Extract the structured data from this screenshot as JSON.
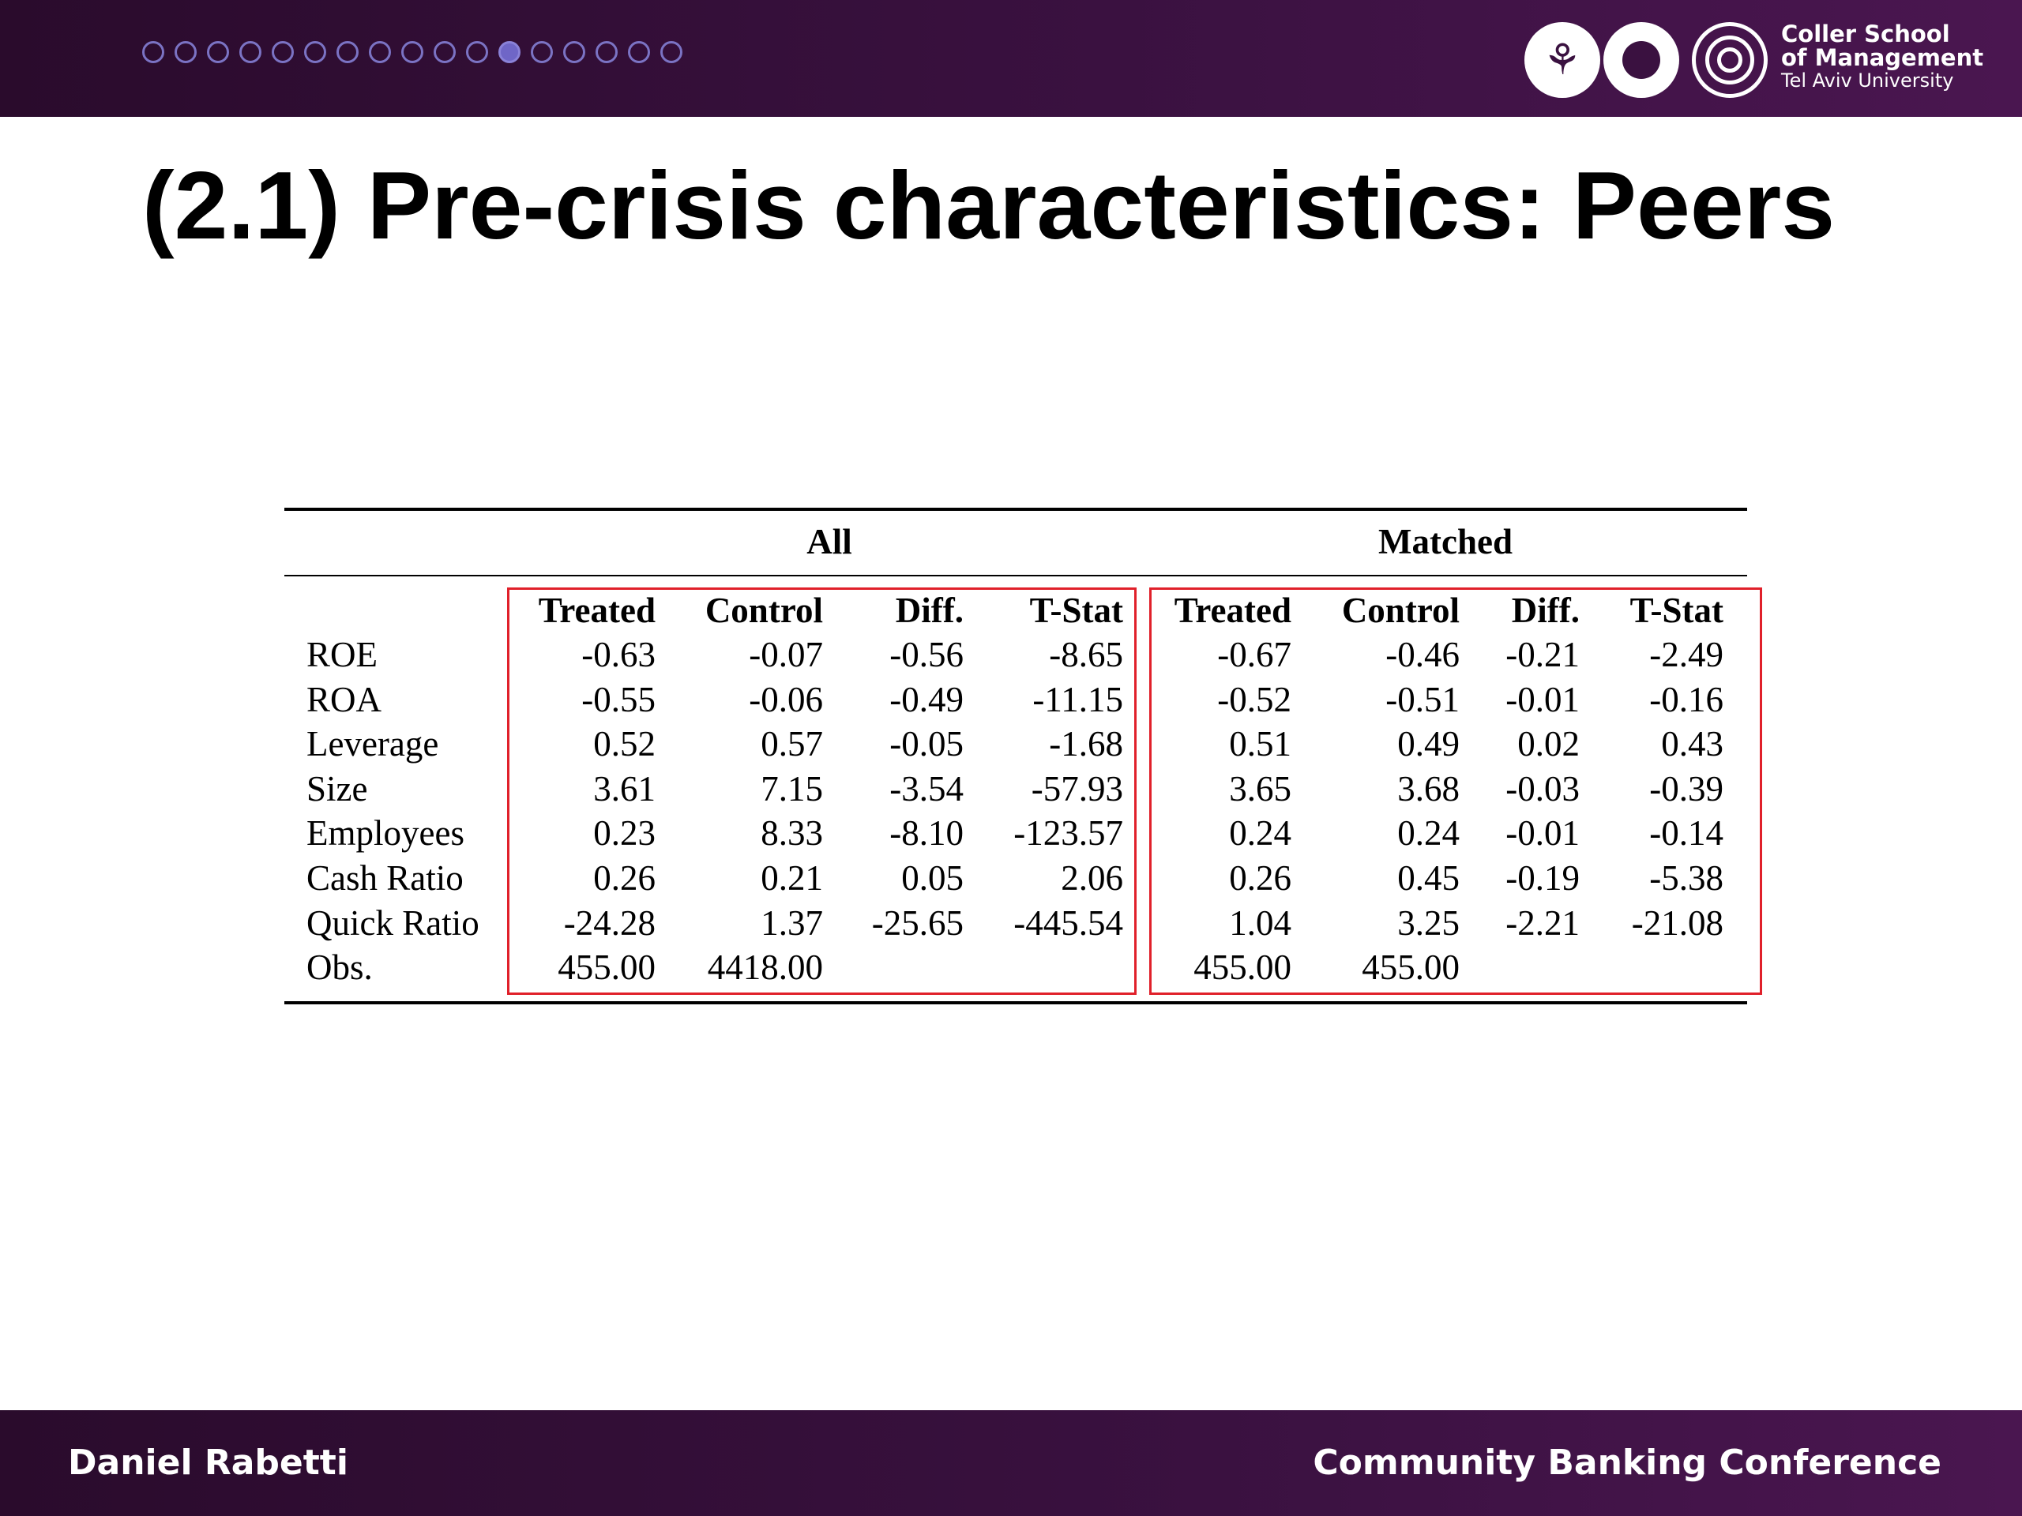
{
  "nav": {
    "total_dots": 17,
    "active_index": 11
  },
  "logo": {
    "line1": "Coller School",
    "line2": "of Management",
    "line3": "Tel Aviv University",
    "emblem_icon": "tau-emblem-icon"
  },
  "title": "(2.1) Pre-crisis characteristics: Peers",
  "table": {
    "groups": [
      "All",
      "Matched"
    ],
    "columns": [
      "Treated",
      "Control",
      "Diff.",
      "T-Stat",
      "Treated",
      "Control",
      "Diff.",
      "T-Stat"
    ],
    "rows": [
      {
        "label": "ROE",
        "values": [
          "-0.63",
          "-0.07",
          "-0.56",
          "-8.65",
          "-0.67",
          "-0.46",
          "-0.21",
          "-2.49"
        ]
      },
      {
        "label": "ROA",
        "values": [
          "-0.55",
          "-0.06",
          "-0.49",
          "-11.15",
          "-0.52",
          "-0.51",
          "-0.01",
          "-0.16"
        ]
      },
      {
        "label": "Leverage",
        "values": [
          "0.52",
          "0.57",
          "-0.05",
          "-1.68",
          "0.51",
          "0.49",
          "0.02",
          "0.43"
        ]
      },
      {
        "label": "Size",
        "values": [
          "3.61",
          "7.15",
          "-3.54",
          "-57.93",
          "3.65",
          "3.68",
          "-0.03",
          "-0.39"
        ]
      },
      {
        "label": "Employees",
        "values": [
          "0.23",
          "8.33",
          "-8.10",
          "-123.57",
          "0.24",
          "0.24",
          "-0.01",
          "-0.14"
        ]
      },
      {
        "label": "Cash Ratio",
        "values": [
          "0.26",
          "0.21",
          "0.05",
          "2.06",
          "0.26",
          "0.45",
          "-0.19",
          "-5.38"
        ]
      },
      {
        "label": "Quick Ratio",
        "values": [
          "-24.28",
          "1.37",
          "-25.65",
          "-445.54",
          "1.04",
          "3.25",
          "-2.21",
          "-21.08"
        ]
      },
      {
        "label": "Obs.",
        "values": [
          "455.00",
          "4418.00",
          "",
          "",
          "455.00",
          "455.00",
          "",
          ""
        ]
      }
    ],
    "highlight_color": "#e0202a"
  },
  "footer": {
    "left": "Daniel Rabetti",
    "right": "Community Banking Conference"
  },
  "colors": {
    "bar": "#3a1140",
    "dot_active": "#6f66c7",
    "dot_outline": "#7b73c4"
  }
}
